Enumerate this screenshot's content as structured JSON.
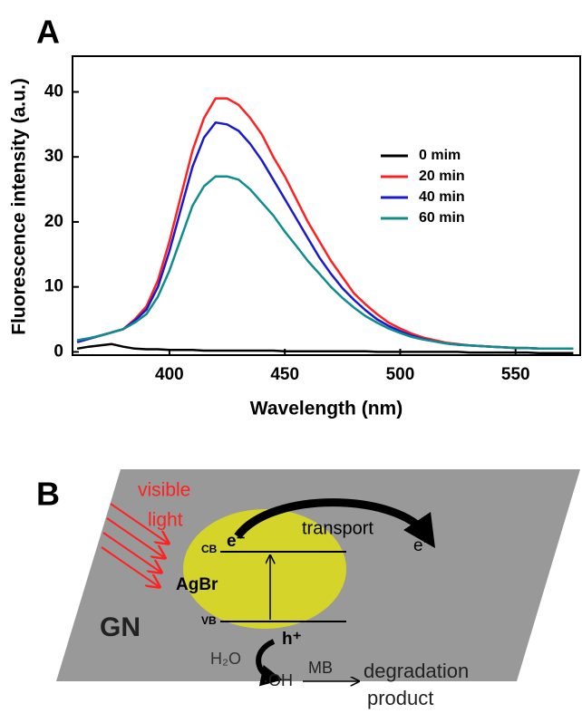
{
  "chart_data": {
    "type": "line",
    "panel_label": "A",
    "xlabel": "Wavelength (nm)",
    "ylabel": "Fluorescence intensity (a.u.)",
    "x": [
      360,
      365,
      370,
      375,
      380,
      385,
      390,
      395,
      400,
      405,
      410,
      415,
      420,
      425,
      430,
      435,
      440,
      445,
      450,
      455,
      460,
      465,
      470,
      475,
      480,
      485,
      490,
      495,
      500,
      505,
      510,
      515,
      520,
      525,
      530,
      535,
      540,
      545,
      550,
      555,
      560,
      565,
      570,
      575
    ],
    "series": [
      {
        "name": "0 mim",
        "color": "#000000",
        "values": [
          0.5,
          0.8,
          1.0,
          1.2,
          0.8,
          0.5,
          0.4,
          0.4,
          0.3,
          0.3,
          0.3,
          0.2,
          0.2,
          0.2,
          0.2,
          0.2,
          0.2,
          0.2,
          0.1,
          0.1,
          0.1,
          0.1,
          0.1,
          0.1,
          0.1,
          0.1,
          0.0,
          0.0,
          0.0,
          0.0,
          0.0,
          0.0,
          0.0,
          0.0,
          -0.1,
          -0.1,
          -0.1,
          -0.1,
          -0.1,
          -0.1,
          -0.2,
          -0.2,
          -0.2,
          -0.2
        ]
      },
      {
        "name": "20 min",
        "color": "#ff2020",
        "values": [
          1.5,
          2.0,
          2.5,
          3.0,
          3.5,
          5.0,
          7.0,
          11,
          17,
          24,
          31,
          36,
          39,
          39,
          38,
          36,
          33.5,
          30,
          27,
          23.5,
          20,
          17,
          14,
          11.5,
          9,
          7.3,
          5.8,
          4.5,
          3.6,
          2.8,
          2.2,
          1.8,
          1.4,
          1.2,
          1.0,
          0.9,
          0.8,
          0.7,
          0.6,
          0.6,
          0.5,
          0.5,
          0.5,
          0.5
        ]
      },
      {
        "name": "40 min",
        "color": "#1a1acc",
        "values": [
          1.5,
          2.0,
          2.5,
          3.0,
          3.5,
          4.8,
          6.5,
          10,
          15.5,
          22,
          28.5,
          33,
          35.3,
          35,
          34,
          32,
          29.5,
          26.5,
          23.5,
          20.5,
          17.5,
          14.5,
          12,
          9.8,
          8,
          6.4,
          5,
          4,
          3.2,
          2.5,
          2,
          1.6,
          1.3,
          1.1,
          1,
          0.9,
          0.8,
          0.7,
          0.6,
          0.6,
          0.5,
          0.5,
          0.5,
          0.5
        ]
      },
      {
        "name": "60 min",
        "color": "#0f8c8c",
        "values": [
          1.8,
          2.1,
          2.5,
          3.0,
          3.5,
          4.5,
          5.8,
          8.5,
          12.5,
          17.5,
          22.5,
          25.5,
          27,
          27,
          26.5,
          25,
          23,
          21,
          18.5,
          16.3,
          14,
          12,
          10,
          8.3,
          6.8,
          5.5,
          4.5,
          3.6,
          2.9,
          2.3,
          1.9,
          1.6,
          1.3,
          1.1,
          1,
          0.9,
          0.8,
          0.7,
          0.6,
          0.6,
          0.5,
          0.5,
          0.5,
          0.5
        ]
      }
    ],
    "xlim": [
      358,
      578
    ],
    "xticks": [
      400,
      450,
      500,
      550
    ],
    "ylim": [
      -0.5,
      45.5
    ],
    "yticks": [
      0,
      10,
      20,
      30,
      40
    ],
    "legend": "upper right"
  },
  "diagram": {
    "panel_label": "B",
    "light": [
      "visible",
      "light"
    ],
    "material": "AgBr",
    "substrate": "GN",
    "conduction_band": "CB",
    "valence_band": "VB",
    "electron": "e⁻",
    "transport": "transport",
    "transported_electron": "e⁻",
    "hole": "h⁺",
    "water": "H₂O",
    "radical": "·OH",
    "dye": "MB",
    "result": [
      "degradation",
      "product"
    ]
  }
}
